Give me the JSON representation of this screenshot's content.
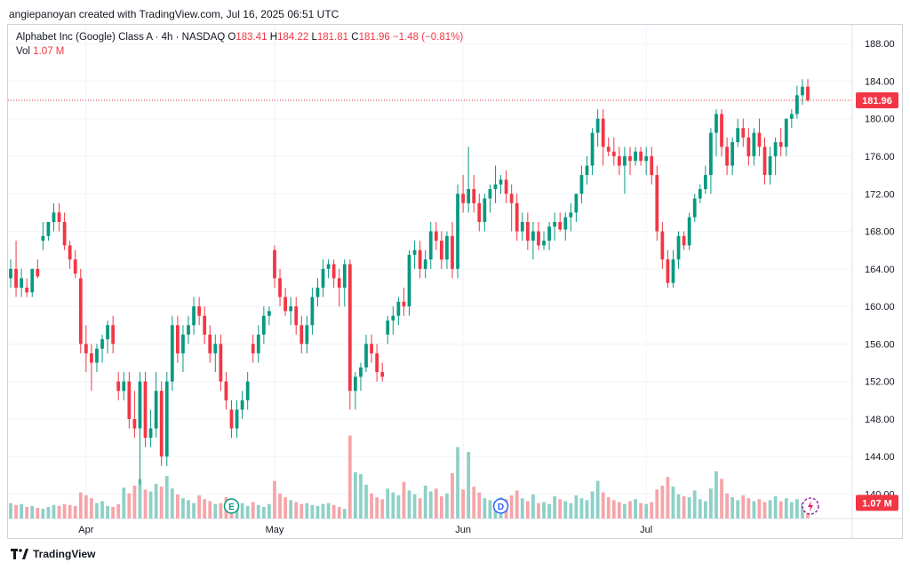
{
  "header": {
    "text": "angiepanoyan created with TradingView.com, Jul 16, 2025 06:51 UTC"
  },
  "legend": {
    "title": "Alphabet Inc (Google) Class A · 4h · NASDAQ",
    "o_label": "O",
    "o_value": "183.41",
    "h_label": "H",
    "h_value": "184.22",
    "l_label": "L",
    "l_value": "181.81",
    "c_label": "C",
    "c_value": "181.96",
    "change": "−1.48 (−0.81%)",
    "vol_label": "Vol",
    "vol_value": "1.07 M"
  },
  "footer": {
    "brand": "TradingView",
    "logo_icon": "tradingview-logo-icon"
  },
  "colors": {
    "up": "#089981",
    "down": "#f23645",
    "vol_up": "#8ed0c7",
    "vol_down": "#f5a5a9",
    "grid": "#f0f3fa"
  },
  "chart_data": {
    "type": "candlestick",
    "y_ticks": [
      "188.00",
      "184.00",
      "180.00",
      "176.00",
      "172.00",
      "168.00",
      "164.00",
      "160.00",
      "156.00",
      "152.00",
      "148.00",
      "144.00",
      "140.00"
    ],
    "y_range": [
      137.4,
      190.0
    ],
    "x_ticks": [
      {
        "label": "Apr",
        "index": 14
      },
      {
        "label": "May",
        "index": 49
      },
      {
        "label": "Jun",
        "index": 84
      },
      {
        "label": "Jul",
        "index": 118
      }
    ],
    "last_price": {
      "value": 181.96,
      "label": "181.96"
    },
    "last_volume": {
      "value": 1.07,
      "label": "1.07 M"
    },
    "events": [
      {
        "label": "E",
        "index": 41
      },
      {
        "label": "D",
        "index": 91
      }
    ],
    "volume_range_millions": [
      0,
      9.2
    ],
    "candles": [
      {
        "o": 163,
        "h": 165,
        "l": 162,
        "c": 164,
        "v": 1.6
      },
      {
        "o": 164,
        "h": 167,
        "l": 161,
        "c": 162,
        "v": 1.4
      },
      {
        "o": 162,
        "h": 164,
        "l": 161,
        "c": 163,
        "v": 1.5
      },
      {
        "o": 162,
        "h": 163,
        "l": 161,
        "c": 161.5,
        "v": 1.2
      },
      {
        "o": 161.5,
        "h": 164,
        "l": 161,
        "c": 164,
        "v": 1.3
      },
      {
        "o": 164,
        "h": 165,
        "l": 163,
        "c": 163.2,
        "v": 1.1
      },
      {
        "o": 167,
        "h": 169,
        "l": 166,
        "c": 167.5,
        "v": 1.0
      },
      {
        "o": 167.5,
        "h": 169,
        "l": 167,
        "c": 169,
        "v": 1.2
      },
      {
        "o": 169,
        "h": 171,
        "l": 168,
        "c": 170,
        "v": 1.4
      },
      {
        "o": 170,
        "h": 171,
        "l": 168,
        "c": 169,
        "v": 1.3
      },
      {
        "o": 169,
        "h": 170,
        "l": 166,
        "c": 166.5,
        "v": 1.5
      },
      {
        "o": 166.5,
        "h": 167,
        "l": 164,
        "c": 165,
        "v": 1.4
      },
      {
        "o": 165,
        "h": 166,
        "l": 163,
        "c": 163.5,
        "v": 1.3
      },
      {
        "o": 163,
        "h": 164,
        "l": 155,
        "c": 156,
        "v": 2.7
      },
      {
        "o": 156,
        "h": 158,
        "l": 153,
        "c": 155,
        "v": 2.4
      },
      {
        "o": 155,
        "h": 156,
        "l": 151,
        "c": 154,
        "v": 2.1
      },
      {
        "o": 154,
        "h": 156,
        "l": 153,
        "c": 155.5,
        "v": 1.6
      },
      {
        "o": 155.5,
        "h": 157,
        "l": 154,
        "c": 156.5,
        "v": 1.8
      },
      {
        "o": 156.5,
        "h": 158.5,
        "l": 155,
        "c": 158,
        "v": 1.3
      },
      {
        "o": 158,
        "h": 159,
        "l": 155,
        "c": 156,
        "v": 1.2
      },
      {
        "o": 152,
        "h": 153,
        "l": 150,
        "c": 151,
        "v": 1.5
      },
      {
        "o": 151,
        "h": 153,
        "l": 150,
        "c": 152,
        "v": 3.2
      },
      {
        "o": 152,
        "h": 153,
        "l": 147,
        "c": 148,
        "v": 2.6
      },
      {
        "o": 148,
        "h": 151,
        "l": 146,
        "c": 147,
        "v": 3.4
      },
      {
        "o": 147,
        "h": 153,
        "l": 141,
        "c": 152,
        "v": 4.1
      },
      {
        "o": 152,
        "h": 153,
        "l": 145,
        "c": 146,
        "v": 3.0
      },
      {
        "o": 146,
        "h": 149,
        "l": 145,
        "c": 147,
        "v": 2.8
      },
      {
        "o": 147,
        "h": 153,
        "l": 146,
        "c": 151,
        "v": 3.6
      },
      {
        "o": 151,
        "h": 152,
        "l": 143,
        "c": 144,
        "v": 3.3
      },
      {
        "o": 144,
        "h": 153,
        "l": 143,
        "c": 152,
        "v": 4.4
      },
      {
        "o": 152,
        "h": 159,
        "l": 151,
        "c": 158,
        "v": 3.1
      },
      {
        "o": 158,
        "h": 159,
        "l": 154,
        "c": 155,
        "v": 2.5
      },
      {
        "o": 155,
        "h": 158,
        "l": 153,
        "c": 157,
        "v": 2.1
      },
      {
        "o": 157,
        "h": 159,
        "l": 156,
        "c": 158,
        "v": 1.9
      },
      {
        "o": 158,
        "h": 161,
        "l": 157,
        "c": 160,
        "v": 1.6
      },
      {
        "o": 160,
        "h": 161,
        "l": 158,
        "c": 159,
        "v": 2.4
      },
      {
        "o": 159,
        "h": 160,
        "l": 156,
        "c": 157,
        "v": 2.0
      },
      {
        "o": 157,
        "h": 158,
        "l": 154,
        "c": 155,
        "v": 1.8
      },
      {
        "o": 155,
        "h": 157,
        "l": 153,
        "c": 156,
        "v": 1.5
      },
      {
        "o": 156,
        "h": 157,
        "l": 151,
        "c": 152,
        "v": 1.6
      },
      {
        "o": 152,
        "h": 153,
        "l": 149,
        "c": 150,
        "v": 2.2
      },
      {
        "o": 149,
        "h": 150,
        "l": 146,
        "c": 147,
        "v": 1.7
      },
      {
        "o": 147,
        "h": 150,
        "l": 146,
        "c": 149,
        "v": 1.4
      },
      {
        "o": 149,
        "h": 151,
        "l": 148,
        "c": 150,
        "v": 1.6
      },
      {
        "o": 150,
        "h": 153,
        "l": 149,
        "c": 152,
        "v": 1.3
      },
      {
        "o": 156,
        "h": 157,
        "l": 154,
        "c": 155,
        "v": 1.7
      },
      {
        "o": 155,
        "h": 158,
        "l": 154,
        "c": 157,
        "v": 1.4
      },
      {
        "o": 157,
        "h": 160,
        "l": 156,
        "c": 159,
        "v": 1.2
      },
      {
        "o": 159,
        "h": 160,
        "l": 158,
        "c": 159.5,
        "v": 1.5
      },
      {
        "o": 166,
        "h": 166.5,
        "l": 162,
        "c": 163,
        "v": 3.9
      },
      {
        "o": 163,
        "h": 164,
        "l": 160,
        "c": 161,
        "v": 2.6
      },
      {
        "o": 161,
        "h": 162,
        "l": 159,
        "c": 159.5,
        "v": 2.2
      },
      {
        "o": 159.5,
        "h": 161,
        "l": 158,
        "c": 160,
        "v": 1.9
      },
      {
        "o": 160,
        "h": 161,
        "l": 157,
        "c": 158,
        "v": 1.7
      },
      {
        "o": 158,
        "h": 159,
        "l": 155,
        "c": 156,
        "v": 1.5
      },
      {
        "o": 156,
        "h": 159,
        "l": 155,
        "c": 158,
        "v": 1.6
      },
      {
        "o": 158,
        "h": 162,
        "l": 157,
        "c": 161,
        "v": 1.4
      },
      {
        "o": 161,
        "h": 163,
        "l": 160,
        "c": 162,
        "v": 1.3
      },
      {
        "o": 162,
        "h": 165,
        "l": 161,
        "c": 164,
        "v": 1.5
      },
      {
        "o": 164,
        "h": 165,
        "l": 163,
        "c": 164.5,
        "v": 1.6
      },
      {
        "o": 164.5,
        "h": 165,
        "l": 162,
        "c": 163,
        "v": 1.4
      },
      {
        "o": 163,
        "h": 164,
        "l": 160,
        "c": 162,
        "v": 1.2
      },
      {
        "o": 162,
        "h": 165,
        "l": 160,
        "c": 164.5,
        "v": 1.0
      },
      {
        "o": 164.5,
        "h": 165,
        "l": 149,
        "c": 151,
        "v": 8.6
      },
      {
        "o": 151,
        "h": 153,
        "l": 149,
        "c": 152.5,
        "v": 4.8
      },
      {
        "o": 152.5,
        "h": 154,
        "l": 151,
        "c": 153.5,
        "v": 4.6
      },
      {
        "o": 153.5,
        "h": 157,
        "l": 153,
        "c": 156,
        "v": 3.5
      },
      {
        "o": 156,
        "h": 157,
        "l": 154,
        "c": 155,
        "v": 2.6
      },
      {
        "o": 155,
        "h": 156,
        "l": 152,
        "c": 153,
        "v": 2.2
      },
      {
        "o": 153,
        "h": 154,
        "l": 152,
        "c": 152.5,
        "v": 2.0
      },
      {
        "o": 157,
        "h": 159,
        "l": 156,
        "c": 158.5,
        "v": 3.1
      },
      {
        "o": 158.5,
        "h": 160,
        "l": 157,
        "c": 159,
        "v": 2.7
      },
      {
        "o": 159,
        "h": 161,
        "l": 158,
        "c": 160.5,
        "v": 2.4
      },
      {
        "o": 160.5,
        "h": 162,
        "l": 159,
        "c": 160,
        "v": 3.8
      },
      {
        "o": 160,
        "h": 166,
        "l": 159,
        "c": 165.5,
        "v": 2.9
      },
      {
        "o": 165.5,
        "h": 167,
        "l": 164,
        "c": 166,
        "v": 2.5
      },
      {
        "o": 166,
        "h": 167,
        "l": 163,
        "c": 164,
        "v": 2.1
      },
      {
        "o": 164,
        "h": 166,
        "l": 163,
        "c": 165,
        "v": 3.4
      },
      {
        "o": 165,
        "h": 169,
        "l": 164,
        "c": 168,
        "v": 2.8
      },
      {
        "o": 168,
        "h": 169,
        "l": 166,
        "c": 167,
        "v": 3.1
      },
      {
        "o": 167,
        "h": 168,
        "l": 164,
        "c": 165,
        "v": 2.3
      },
      {
        "o": 165,
        "h": 168,
        "l": 164,
        "c": 167.5,
        "v": 2.6
      },
      {
        "o": 167.5,
        "h": 169,
        "l": 163,
        "c": 164,
        "v": 4.7
      },
      {
        "o": 164,
        "h": 173,
        "l": 163,
        "c": 172,
        "v": 7.4
      },
      {
        "o": 172,
        "h": 174,
        "l": 170,
        "c": 171,
        "v": 3.0
      },
      {
        "o": 171,
        "h": 177,
        "l": 170,
        "c": 172.5,
        "v": 6.9
      },
      {
        "o": 172.5,
        "h": 174,
        "l": 170,
        "c": 171,
        "v": 3.3
      },
      {
        "o": 171,
        "h": 172,
        "l": 168,
        "c": 169,
        "v": 2.7
      },
      {
        "o": 169,
        "h": 172,
        "l": 168,
        "c": 171.5,
        "v": 2.1
      },
      {
        "o": 171.5,
        "h": 173,
        "l": 170,
        "c": 172.5,
        "v": 1.9
      },
      {
        "o": 172.5,
        "h": 175,
        "l": 171,
        "c": 173,
        "v": 1.8
      },
      {
        "o": 173,
        "h": 174,
        "l": 172,
        "c": 173.5,
        "v": 2.2
      },
      {
        "o": 173.5,
        "h": 174.5,
        "l": 171,
        "c": 172,
        "v": 2.0
      },
      {
        "o": 172,
        "h": 173,
        "l": 168,
        "c": 171,
        "v": 2.4
      },
      {
        "o": 171,
        "h": 172,
        "l": 167,
        "c": 168,
        "v": 2.9
      },
      {
        "o": 168,
        "h": 170,
        "l": 167,
        "c": 169,
        "v": 2.1
      },
      {
        "o": 169,
        "h": 170,
        "l": 166,
        "c": 167,
        "v": 1.8
      },
      {
        "o": 167,
        "h": 169,
        "l": 165,
        "c": 168,
        "v": 2.5
      },
      {
        "o": 168,
        "h": 169,
        "l": 166,
        "c": 166.5,
        "v": 1.6
      },
      {
        "o": 166.5,
        "h": 168,
        "l": 166,
        "c": 167,
        "v": 1.7
      },
      {
        "o": 167,
        "h": 169,
        "l": 166,
        "c": 168.5,
        "v": 1.5
      },
      {
        "o": 168.5,
        "h": 170,
        "l": 167,
        "c": 169,
        "v": 2.3
      },
      {
        "o": 169,
        "h": 170,
        "l": 168,
        "c": 168.2,
        "v": 2.0
      },
      {
        "o": 168.2,
        "h": 170,
        "l": 167,
        "c": 169.5,
        "v": 1.8
      },
      {
        "o": 169.5,
        "h": 171,
        "l": 168,
        "c": 170,
        "v": 1.6
      },
      {
        "o": 170,
        "h": 172,
        "l": 169,
        "c": 172,
        "v": 2.4
      },
      {
        "o": 172,
        "h": 175,
        "l": 171,
        "c": 174,
        "v": 2.1
      },
      {
        "o": 174,
        "h": 176,
        "l": 173,
        "c": 175,
        "v": 1.9
      },
      {
        "o": 175,
        "h": 179,
        "l": 174,
        "c": 178.5,
        "v": 2.8
      },
      {
        "o": 178.5,
        "h": 181,
        "l": 177,
        "c": 180,
        "v": 3.9
      },
      {
        "o": 180,
        "h": 181,
        "l": 175,
        "c": 177,
        "v": 2.7
      },
      {
        "o": 177,
        "h": 178,
        "l": 176,
        "c": 176.5,
        "v": 2.2
      },
      {
        "o": 176.5,
        "h": 178,
        "l": 175,
        "c": 176,
        "v": 1.9
      },
      {
        "o": 176,
        "h": 177,
        "l": 174,
        "c": 175,
        "v": 1.7
      },
      {
        "o": 175,
        "h": 177,
        "l": 172,
        "c": 176,
        "v": 1.5
      },
      {
        "o": 176,
        "h": 177,
        "l": 174,
        "c": 175.5,
        "v": 1.8
      },
      {
        "o": 175.5,
        "h": 177,
        "l": 175,
        "c": 176.5,
        "v": 2.0
      },
      {
        "o": 176.5,
        "h": 177,
        "l": 175,
        "c": 175.5,
        "v": 1.6
      },
      {
        "o": 175.5,
        "h": 177,
        "l": 174,
        "c": 176,
        "v": 1.5
      },
      {
        "o": 176,
        "h": 177,
        "l": 173,
        "c": 174,
        "v": 1.7
      },
      {
        "o": 174,
        "h": 175,
        "l": 167,
        "c": 168,
        "v": 3.0
      },
      {
        "o": 168,
        "h": 169,
        "l": 164,
        "c": 165,
        "v": 3.4
      },
      {
        "o": 165,
        "h": 166,
        "l": 162,
        "c": 162.5,
        "v": 4.3
      },
      {
        "o": 162.5,
        "h": 166,
        "l": 162,
        "c": 165,
        "v": 3.3
      },
      {
        "o": 165,
        "h": 168,
        "l": 164,
        "c": 167.5,
        "v": 2.5
      },
      {
        "o": 167.5,
        "h": 168,
        "l": 166,
        "c": 166.5,
        "v": 2.3
      },
      {
        "o": 166.5,
        "h": 170,
        "l": 166,
        "c": 169.5,
        "v": 2.2
      },
      {
        "o": 169.5,
        "h": 172,
        "l": 169,
        "c": 171.5,
        "v": 2.9
      },
      {
        "o": 171.5,
        "h": 173,
        "l": 171,
        "c": 172.5,
        "v": 2.0
      },
      {
        "o": 172.5,
        "h": 175,
        "l": 172,
        "c": 174,
        "v": 1.8
      },
      {
        "o": 174,
        "h": 179,
        "l": 172,
        "c": 178.5,
        "v": 3.1
      },
      {
        "o": 178.5,
        "h": 181,
        "l": 176,
        "c": 180.5,
        "v": 4.9
      },
      {
        "o": 180.5,
        "h": 181,
        "l": 176,
        "c": 177,
        "v": 4.1
      },
      {
        "o": 177,
        "h": 178,
        "l": 174,
        "c": 175,
        "v": 2.6
      },
      {
        "o": 175,
        "h": 178,
        "l": 174,
        "c": 177.5,
        "v": 2.2
      },
      {
        "o": 177.5,
        "h": 180,
        "l": 177,
        "c": 179,
        "v": 1.9
      },
      {
        "o": 179,
        "h": 180,
        "l": 177,
        "c": 178,
        "v": 2.4
      },
      {
        "o": 178,
        "h": 179,
        "l": 175,
        "c": 176,
        "v": 2.1
      },
      {
        "o": 176,
        "h": 179,
        "l": 175,
        "c": 178.5,
        "v": 1.8
      },
      {
        "o": 178.5,
        "h": 180,
        "l": 176,
        "c": 177,
        "v": 2.0
      },
      {
        "o": 177,
        "h": 178,
        "l": 173,
        "c": 174,
        "v": 1.7
      },
      {
        "o": 174,
        "h": 177,
        "l": 173,
        "c": 176,
        "v": 1.9
      },
      {
        "o": 176,
        "h": 178,
        "l": 174,
        "c": 177.5,
        "v": 2.3
      },
      {
        "o": 177.5,
        "h": 179,
        "l": 176,
        "c": 177,
        "v": 1.8
      },
      {
        "o": 177,
        "h": 180,
        "l": 176,
        "c": 180,
        "v": 2.1
      },
      {
        "o": 180,
        "h": 181,
        "l": 179,
        "c": 180.5,
        "v": 1.7
      },
      {
        "o": 180.5,
        "h": 183.5,
        "l": 180,
        "c": 182.5,
        "v": 2.0
      },
      {
        "o": 182.5,
        "h": 184.2,
        "l": 181.5,
        "c": 183.4,
        "v": 1.6
      },
      {
        "o": 183.41,
        "h": 184.22,
        "l": 181.81,
        "c": 181.96,
        "v": 1.07
      }
    ]
  }
}
